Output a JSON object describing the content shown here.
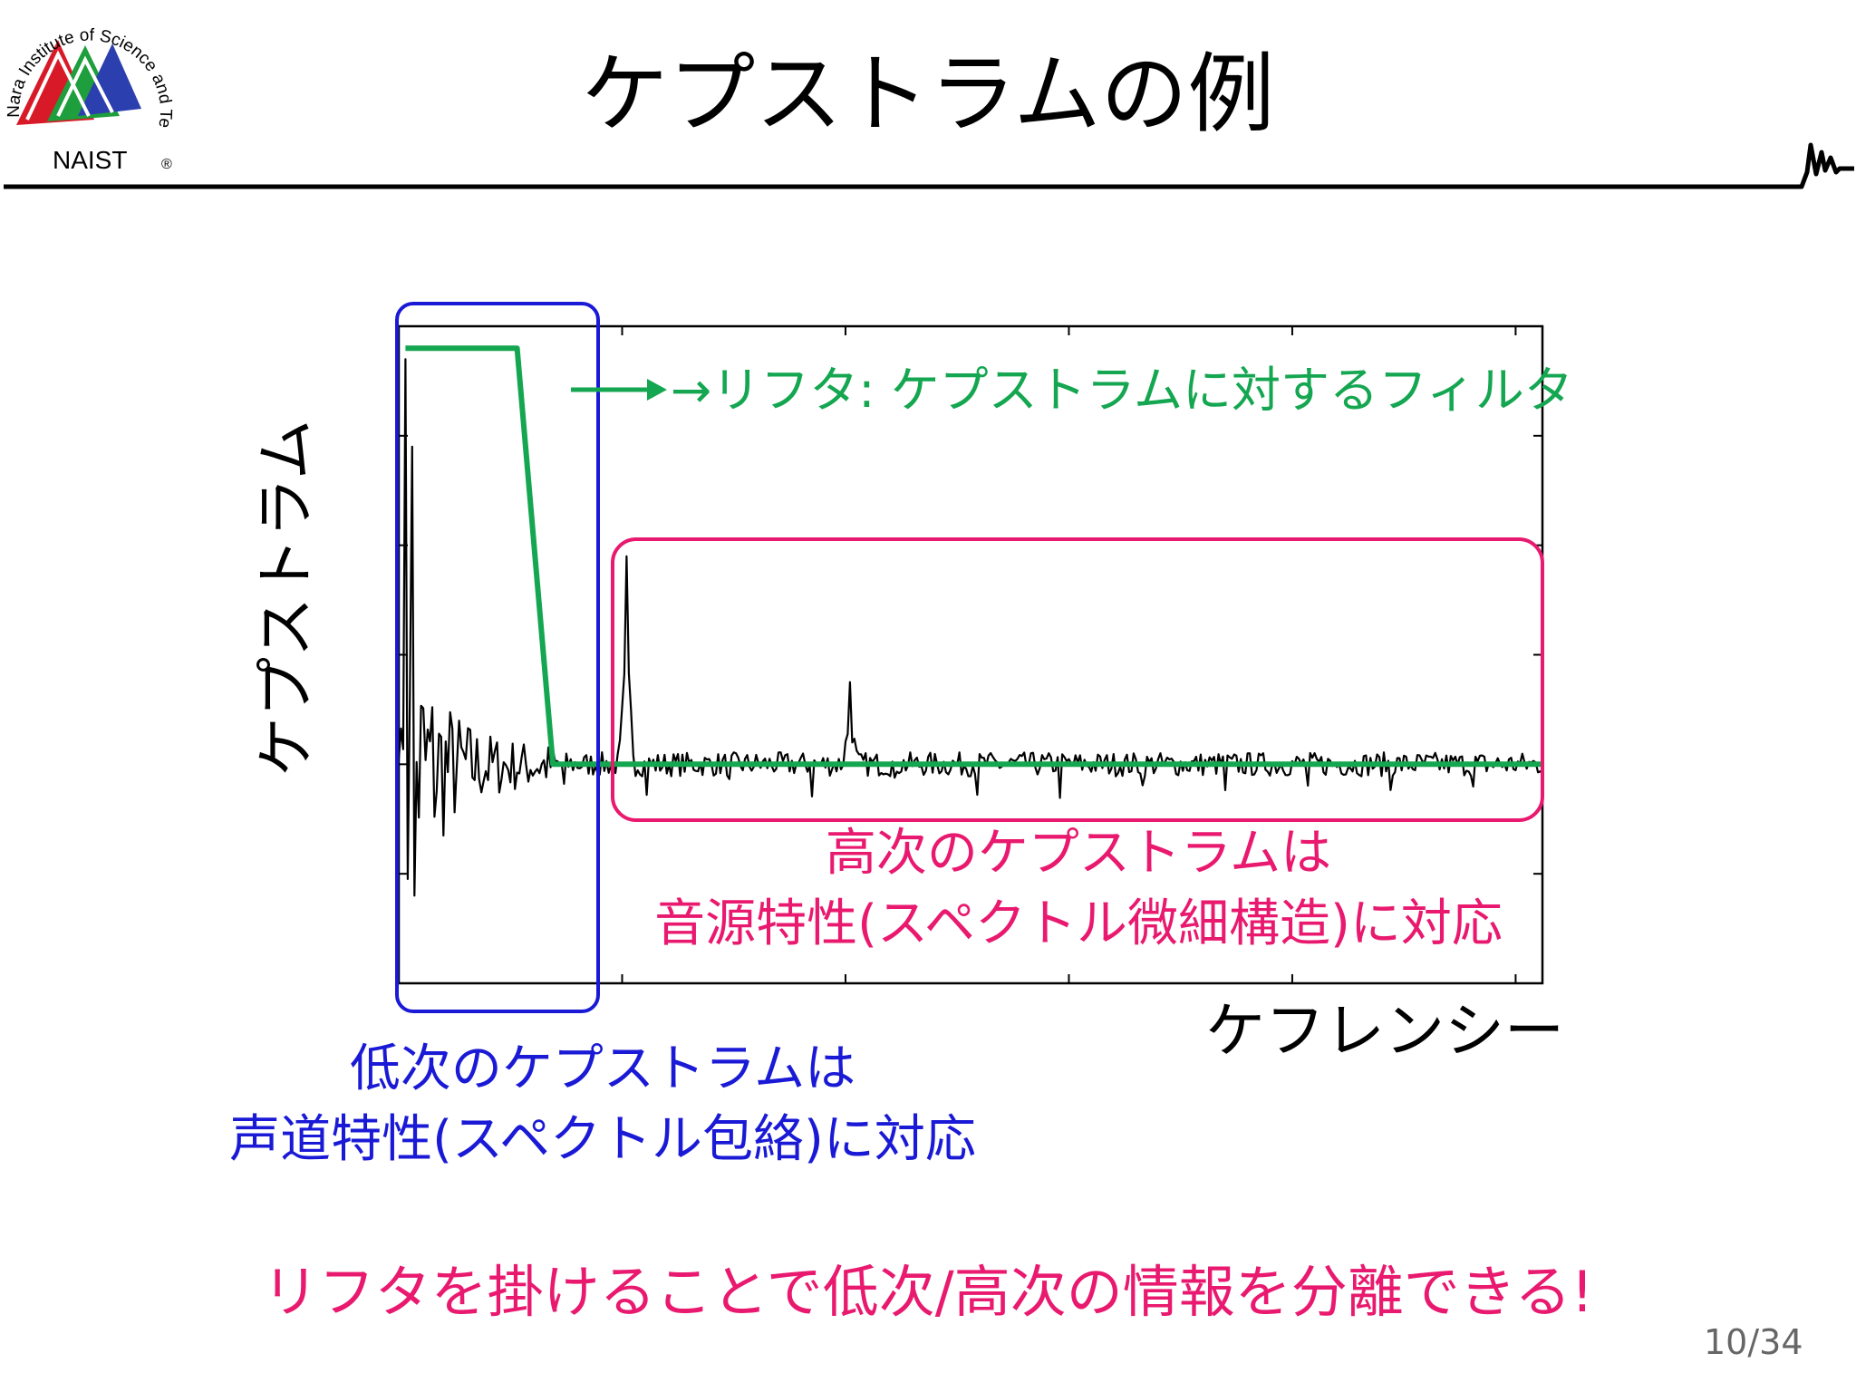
{
  "slide": {
    "title": "ケプストラムの例",
    "logo": {
      "text_ring": "Nara Institute of Science and Technology",
      "wordmark": "NAIST",
      "registered_mark": "®",
      "colors": [
        "#d81a28",
        "#1e9e3c",
        "#2b3fae"
      ]
    },
    "annotations": {
      "lifter": "→リフタ: ケプストラムに対するフィルタ",
      "high_order_line1": "高次のケプストラムは",
      "high_order_line2": "音源特性(スペクトル微細構造)に対応",
      "low_order_line1": "低次のケプストラムは",
      "low_order_line2": "声道特性(スペクトル包絡)に対応"
    },
    "conclusion": "リフタを掛けることで低次/高次の情報を分離できる!",
    "page_number": "10/34",
    "colors": {
      "lifter": "#14a650",
      "high_order": "#e8196e",
      "low_order": "#1a1ad6",
      "signal": "#000000"
    }
  },
  "chart_data": {
    "type": "line",
    "xlabel": "ケフレンシー",
    "ylabel": "ケプストラム",
    "tick_labels_shown": false,
    "xlim": [
      0,
      512
    ],
    "ylim": [
      -2,
      4
    ],
    "series": [
      {
        "kind": "cepstrum",
        "peaks": [
          {
            "x": 3,
            "y": 3.7
          },
          {
            "x": 6,
            "y": 2.9
          },
          {
            "x": 7,
            "y": -1.2
          },
          {
            "x": 102,
            "y": 1.9
          },
          {
            "x": 202,
            "y": 0.75
          }
        ],
        "baseline": 0
      },
      {
        "kind": "lifter",
        "x": [
          3,
          53,
          69,
          512
        ],
        "y": [
          3.8,
          3.8,
          0,
          0
        ]
      }
    ],
    "regions": [
      {
        "kind": "low_order",
        "x_range": [
          0,
          69
        ]
      },
      {
        "kind": "high_order",
        "x_range": [
          73,
          512
        ]
      }
    ]
  }
}
